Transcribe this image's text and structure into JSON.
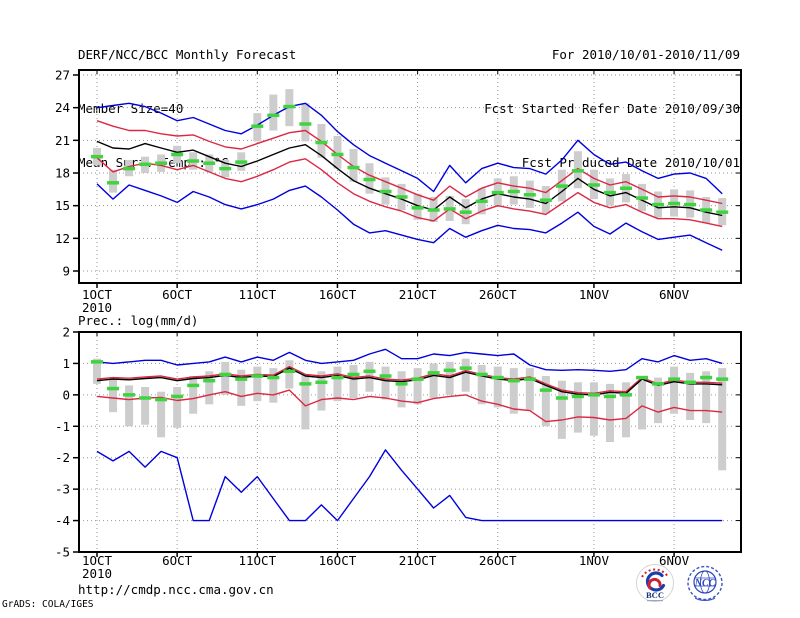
{
  "header": {
    "title": "DERF/NCC/BCC Monthly Forecast",
    "member_size": "Member Size=40",
    "temp_label": "Mean Surf. Temp.: °C",
    "for_range": "For 2010/10/01-2010/11/09",
    "refer_date": "Fcst Started Refer Date 2010/09/30",
    "produced_date": "Fcst Produced Date 2010/10/01"
  },
  "footer": {
    "url": "http://cmdp.ncc.cma.gov.cn",
    "credit": "GrADS: COLA/IGES",
    "logos": [
      {
        "name": "bcc-logo",
        "text": "BCC"
      },
      {
        "name": "ncc-logo",
        "text": "NCC"
      }
    ]
  },
  "colors": {
    "blue": "#0000dd",
    "red": "#dc2844",
    "black": "#000000",
    "green": "#3fd43f",
    "gray_bar": "#cdcdcd",
    "grid": "#969696",
    "frame": "#000000"
  },
  "chart_data": [
    {
      "type": "line",
      "panel": "temperature",
      "title": "Mean Surf. Temp.: °C",
      "xlabel": "",
      "ylabel": "",
      "grid": "dotted",
      "legend": "none",
      "ylim": [
        7.9,
        27.5
      ],
      "yticks": [
        27,
        24,
        21,
        18,
        15,
        12,
        9
      ],
      "x_start_date": "2010-10-01",
      "x_days": 40,
      "xticks": [
        {
          "day": 1,
          "label": "1OCT",
          "sub": "2010"
        },
        {
          "day": 6,
          "label": "6OCT"
        },
        {
          "day": 11,
          "label": "11OCT"
        },
        {
          "day": 16,
          "label": "16OCT"
        },
        {
          "day": 21,
          "label": "21OCT"
        },
        {
          "day": 26,
          "label": "26OCT"
        },
        {
          "day": 32,
          "label": "1NOV"
        },
        {
          "day": 37,
          "label": "6NOV"
        }
      ],
      "series": [
        {
          "name": "ensemble-max",
          "color": "blue",
          "values": [
            24.0,
            24.2,
            24.4,
            24.1,
            23.5,
            22.8,
            23.1,
            22.5,
            21.9,
            21.6,
            22.4,
            23.3,
            24.1,
            24.4,
            23.3,
            21.8,
            20.6,
            19.6,
            18.9,
            18.2,
            17.5,
            16.3,
            18.7,
            17.1,
            18.4,
            18.9,
            18.5,
            18.4,
            17.9,
            19.2,
            21.0,
            19.7,
            18.8,
            19.0,
            18.2,
            17.5,
            17.9,
            18.0,
            17.5,
            16.1
          ]
        },
        {
          "name": "ensemble-upper",
          "color": "red",
          "values": [
            22.8,
            22.3,
            21.9,
            21.9,
            21.6,
            21.4,
            21.5,
            20.9,
            20.4,
            20.2,
            20.7,
            21.2,
            21.7,
            21.9,
            20.9,
            19.7,
            18.6,
            17.8,
            17.2,
            16.6,
            16.0,
            15.5,
            16.8,
            15.8,
            16.6,
            17.1,
            16.8,
            16.6,
            16.2,
            17.3,
            18.4,
            17.5,
            16.9,
            17.2,
            16.5,
            15.8,
            15.9,
            15.8,
            15.5,
            15.2
          ]
        },
        {
          "name": "ensemble-mean",
          "color": "black",
          "values": [
            20.9,
            20.3,
            20.2,
            20.7,
            20.3,
            19.9,
            20.1,
            19.5,
            18.9,
            18.6,
            19.1,
            19.7,
            20.3,
            20.6,
            19.6,
            18.4,
            17.3,
            16.6,
            16.1,
            15.6,
            15.0,
            14.6,
            15.8,
            14.8,
            15.6,
            16.1,
            15.8,
            15.6,
            15.2,
            16.3,
            17.5,
            16.5,
            15.9,
            16.2,
            15.5,
            14.8,
            14.9,
            14.8,
            14.4,
            14.1
          ]
        },
        {
          "name": "ensemble-lower",
          "color": "red",
          "values": [
            19.4,
            18.1,
            18.6,
            18.9,
            18.7,
            18.3,
            18.7,
            18.1,
            17.5,
            17.2,
            17.7,
            18.3,
            19.0,
            19.3,
            18.3,
            17.1,
            16.1,
            15.4,
            14.9,
            14.5,
            13.9,
            13.6,
            14.7,
            13.8,
            14.5,
            15.0,
            14.7,
            14.5,
            14.2,
            15.2,
            16.2,
            15.3,
            14.8,
            15.1,
            14.4,
            13.8,
            13.8,
            13.7,
            13.4,
            13.1
          ]
        },
        {
          "name": "ensemble-min",
          "color": "blue",
          "values": [
            17.0,
            15.6,
            16.9,
            16.4,
            15.9,
            15.3,
            16.3,
            15.8,
            15.1,
            14.7,
            15.1,
            15.6,
            16.4,
            16.8,
            15.8,
            14.6,
            13.3,
            12.5,
            12.7,
            12.3,
            11.9,
            11.6,
            12.9,
            12.1,
            12.7,
            13.2,
            12.9,
            12.8,
            12.5,
            13.4,
            14.4,
            13.1,
            12.4,
            13.4,
            12.6,
            11.9,
            12.1,
            12.3,
            11.6,
            10.9
          ]
        }
      ],
      "markers": {
        "name": "observation-dash",
        "color": "green",
        "values": [
          19.5,
          17.1,
          18.4,
          18.8,
          18.9,
          19.7,
          19.1,
          18.9,
          18.4,
          19.0,
          22.3,
          23.3,
          24.1,
          22.5,
          20.8,
          19.7,
          18.5,
          17.4,
          16.3,
          15.8,
          14.8,
          14.6,
          14.7,
          14.4,
          15.4,
          16.2,
          16.3,
          16.0,
          15.5,
          16.8,
          18.2,
          16.9,
          16.2,
          16.6,
          15.7,
          15.1,
          15.2,
          15.1,
          14.6,
          14.4
        ]
      },
      "bars": {
        "name": "member-spread",
        "color": "gray_bar",
        "ranges": [
          [
            18.7,
            20.3
          ],
          [
            16.2,
            18.3
          ],
          [
            17.7,
            19.2
          ],
          [
            18.0,
            19.5
          ],
          [
            18.1,
            19.7
          ],
          [
            18.9,
            20.5
          ],
          [
            18.3,
            19.9
          ],
          [
            18.1,
            19.7
          ],
          [
            17.6,
            19.2
          ],
          [
            18.2,
            19.9
          ],
          [
            20.9,
            23.5
          ],
          [
            21.9,
            25.2
          ],
          [
            22.3,
            25.7
          ],
          [
            20.9,
            24.4
          ],
          [
            19.4,
            22.5
          ],
          [
            18.4,
            21.4
          ],
          [
            17.2,
            20.2
          ],
          [
            16.1,
            18.9
          ],
          [
            15.1,
            17.6
          ],
          [
            14.6,
            17.0
          ],
          [
            13.7,
            16.1
          ],
          [
            13.5,
            15.8
          ],
          [
            13.6,
            15.9
          ],
          [
            13.3,
            15.6
          ],
          [
            14.2,
            16.6
          ],
          [
            15.0,
            17.5
          ],
          [
            15.1,
            17.7
          ],
          [
            14.8,
            17.3
          ],
          [
            14.3,
            16.8
          ],
          [
            15.4,
            18.3
          ],
          [
            16.6,
            20.0
          ],
          [
            15.6,
            18.3
          ],
          [
            15.0,
            17.5
          ],
          [
            15.3,
            17.9
          ],
          [
            14.5,
            17.0
          ],
          [
            13.9,
            16.3
          ],
          [
            14.0,
            16.5
          ],
          [
            13.9,
            16.4
          ],
          [
            13.4,
            15.8
          ],
          [
            13.2,
            15.7
          ]
        ]
      }
    },
    {
      "type": "line",
      "panel": "precipitation",
      "title": "Prec.: log(mm/d)",
      "xlabel": "",
      "ylabel": "",
      "grid": "dotted",
      "legend": "none",
      "ylim": [
        -5,
        2
      ],
      "yticks": [
        2,
        1,
        0,
        -1,
        -2,
        -3,
        -4,
        -5
      ],
      "x_start_date": "2010-10-01",
      "x_days": 40,
      "xticks": [
        {
          "day": 1,
          "label": "1OCT",
          "sub": "2010"
        },
        {
          "day": 6,
          "label": "6OCT"
        },
        {
          "day": 11,
          "label": "11OCT"
        },
        {
          "day": 16,
          "label": "16OCT"
        },
        {
          "day": 21,
          "label": "21OCT"
        },
        {
          "day": 26,
          "label": "26OCT"
        },
        {
          "day": 32,
          "label": "1NOV"
        },
        {
          "day": 37,
          "label": "6NOV"
        }
      ],
      "series": [
        {
          "name": "ensemble-max",
          "color": "blue",
          "values": [
            1.05,
            1.0,
            1.05,
            1.1,
            1.1,
            0.95,
            1.0,
            1.05,
            1.2,
            1.05,
            1.2,
            1.1,
            1.35,
            1.1,
            1.0,
            1.05,
            1.1,
            1.3,
            1.45,
            1.15,
            1.15,
            1.3,
            1.25,
            1.35,
            1.3,
            1.25,
            1.3,
            0.95,
            0.8,
            0.78,
            0.8,
            0.78,
            0.75,
            0.8,
            1.15,
            1.05,
            1.25,
            1.1,
            1.15,
            1.0
          ]
        },
        {
          "name": "ensemble-upper",
          "color": "red",
          "values": [
            0.5,
            0.55,
            0.53,
            0.57,
            0.6,
            0.5,
            0.57,
            0.6,
            0.67,
            0.6,
            0.65,
            0.63,
            0.9,
            0.65,
            0.6,
            0.67,
            0.55,
            0.6,
            0.5,
            0.47,
            0.53,
            0.67,
            0.6,
            0.77,
            0.65,
            0.55,
            0.5,
            0.57,
            0.35,
            0.15,
            0.07,
            0.05,
            0.13,
            0.1,
            0.55,
            0.35,
            0.47,
            0.4,
            0.4,
            0.37
          ]
        },
        {
          "name": "ensemble-mean",
          "color": "black",
          "values": [
            0.45,
            0.5,
            0.48,
            0.52,
            0.55,
            0.45,
            0.52,
            0.55,
            0.62,
            0.55,
            0.6,
            0.58,
            0.85,
            0.6,
            0.55,
            0.62,
            0.5,
            0.55,
            0.45,
            0.42,
            0.48,
            0.62,
            0.55,
            0.72,
            0.6,
            0.5,
            0.45,
            0.52,
            0.3,
            0.1,
            0.02,
            0.0,
            0.08,
            0.05,
            0.5,
            0.3,
            0.42,
            0.35,
            0.35,
            0.32
          ]
        },
        {
          "name": "ensemble-lower",
          "color": "red",
          "values": [
            -0.05,
            -0.1,
            -0.15,
            -0.1,
            -0.08,
            -0.18,
            -0.12,
            0.0,
            0.1,
            -0.05,
            0.05,
            0.0,
            0.15,
            -0.35,
            -0.15,
            -0.1,
            -0.15,
            -0.05,
            -0.1,
            -0.2,
            -0.25,
            -0.12,
            -0.05,
            0.0,
            -0.2,
            -0.3,
            -0.45,
            -0.5,
            -0.85,
            -0.8,
            -0.7,
            -0.72,
            -0.8,
            -0.75,
            -0.35,
            -0.55,
            -0.4,
            -0.5,
            -0.5,
            -0.55
          ]
        },
        {
          "name": "ensemble-min",
          "color": "blue",
          "values": [
            -1.8,
            -2.1,
            -1.8,
            -2.3,
            -1.8,
            -2.0,
            -4.0,
            -4.0,
            -2.6,
            -3.1,
            -2.6,
            -3.3,
            -4.0,
            -4.0,
            -3.5,
            -4.0,
            -3.3,
            -2.6,
            -1.75,
            -2.4,
            -3.0,
            -3.6,
            -3.2,
            -3.9,
            -4.0,
            -4.0,
            -4.0,
            -4.0,
            -4.0,
            -4.0,
            -4.0,
            -4.0,
            -4.0,
            -4.0,
            -4.0,
            -4.0,
            -4.0,
            -4.0,
            -4.0,
            -4.0
          ]
        }
      ],
      "markers": {
        "name": "observation-dash",
        "color": "green",
        "values": [
          1.05,
          0.2,
          0.0,
          -0.1,
          -0.15,
          -0.05,
          0.3,
          0.45,
          0.65,
          0.5,
          0.6,
          0.55,
          0.75,
          0.35,
          0.4,
          0.55,
          0.65,
          0.75,
          0.6,
          0.35,
          0.5,
          0.7,
          0.78,
          0.85,
          0.65,
          0.55,
          0.45,
          0.5,
          0.15,
          -0.1,
          -0.05,
          0.0,
          -0.05,
          0.0,
          0.55,
          0.35,
          0.5,
          0.4,
          0.55,
          0.5
        ]
      },
      "bars": {
        "name": "member-spread",
        "color": "gray_bar",
        "ranges": [
          [
            0.35,
            1.15
          ],
          [
            -0.55,
            0.5
          ],
          [
            -1.0,
            0.3
          ],
          [
            -0.95,
            0.25
          ],
          [
            -1.35,
            0.1
          ],
          [
            -1.05,
            0.25
          ],
          [
            -0.6,
            0.6
          ],
          [
            -0.3,
            0.75
          ],
          [
            0.0,
            1.05
          ],
          [
            -0.35,
            0.8
          ],
          [
            -0.2,
            0.9
          ],
          [
            -0.25,
            0.85
          ],
          [
            0.2,
            1.1
          ],
          [
            -1.1,
            0.65
          ],
          [
            -0.5,
            0.75
          ],
          [
            -0.2,
            0.9
          ],
          [
            -0.1,
            0.95
          ],
          [
            0.1,
            1.05
          ],
          [
            -0.15,
            0.9
          ],
          [
            -0.4,
            0.75
          ],
          [
            -0.3,
            0.85
          ],
          [
            -0.1,
            1.0
          ],
          [
            0.0,
            1.05
          ],
          [
            0.1,
            1.15
          ],
          [
            -0.3,
            0.95
          ],
          [
            -0.4,
            0.9
          ],
          [
            -0.6,
            0.85
          ],
          [
            -0.5,
            0.85
          ],
          [
            -1.0,
            0.6
          ],
          [
            -1.4,
            0.45
          ],
          [
            -1.2,
            0.4
          ],
          [
            -1.3,
            0.4
          ],
          [
            -1.5,
            0.35
          ],
          [
            -1.35,
            0.4
          ],
          [
            -1.1,
            0.45
          ],
          [
            -0.9,
            0.55
          ],
          [
            -0.6,
            0.9
          ],
          [
            -0.8,
            0.7
          ],
          [
            -0.9,
            0.75
          ],
          [
            -2.4,
            0.85
          ]
        ]
      }
    }
  ]
}
